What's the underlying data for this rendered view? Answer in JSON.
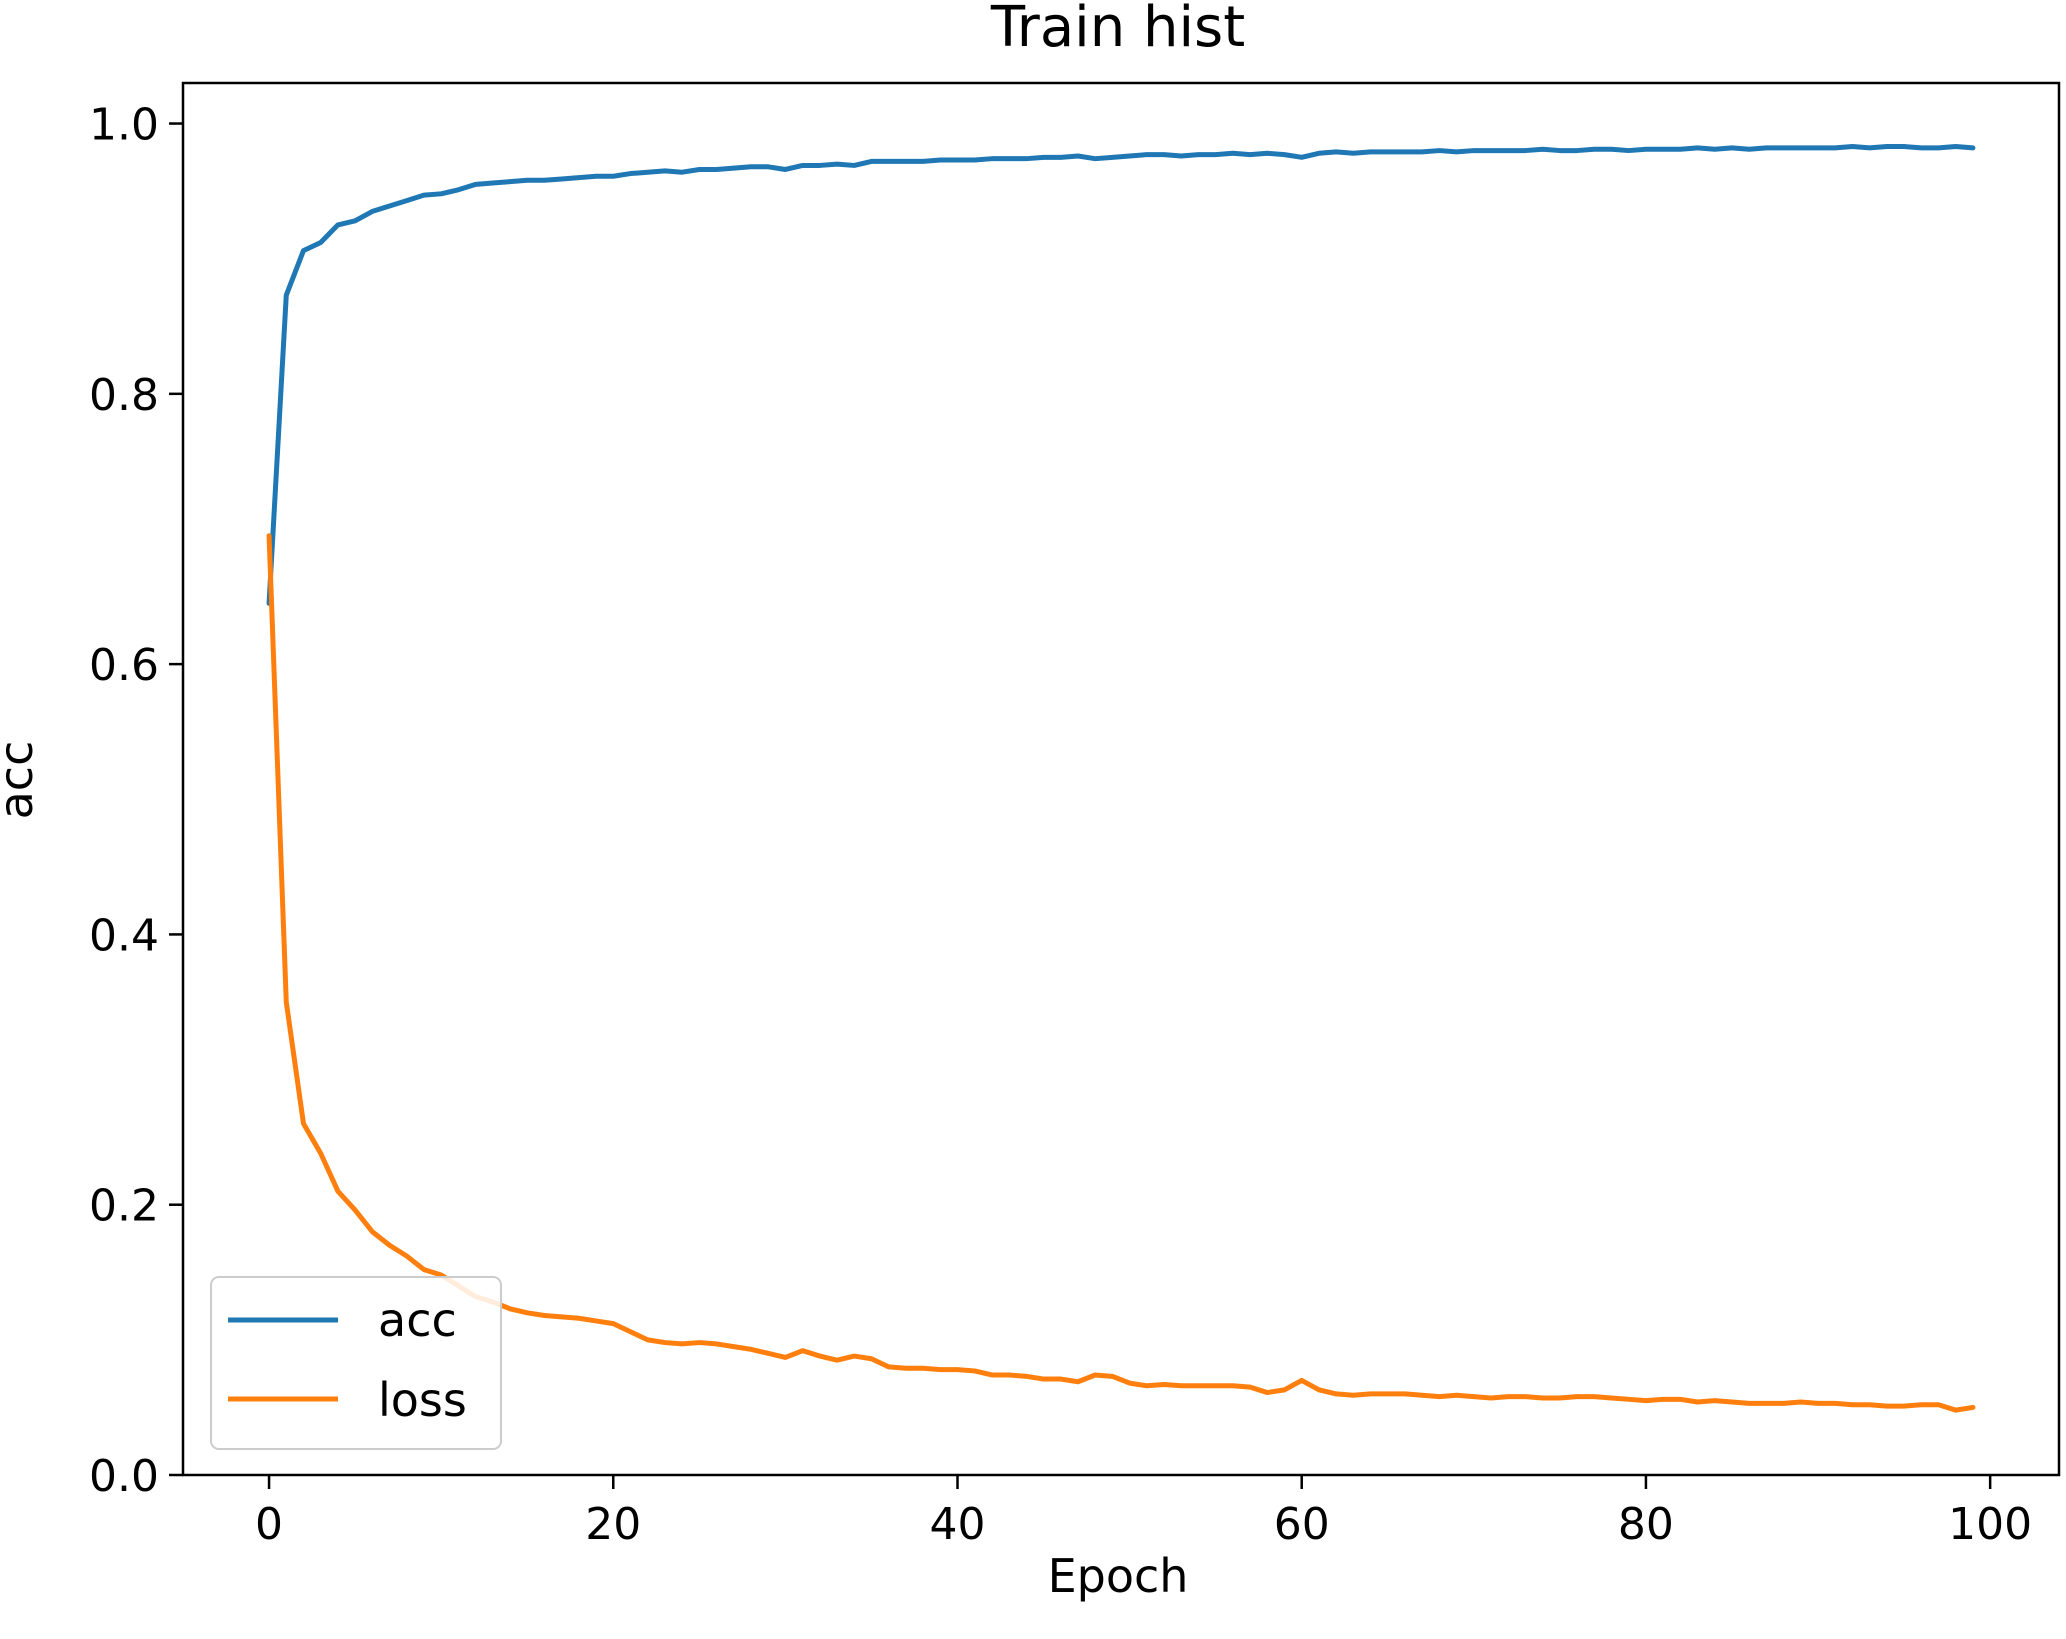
{
  "chart_data": {
    "type": "line",
    "title": "Train hist",
    "xlabel": "Epoch",
    "ylabel": "acc",
    "xlim": [
      -5,
      104
    ],
    "ylim": [
      0.0,
      1.03
    ],
    "xticks": [
      0,
      20,
      40,
      60,
      80,
      100
    ],
    "xtick_labels": [
      "0",
      "20",
      "40",
      "60",
      "80",
      "100"
    ],
    "yticks": [
      0.0,
      0.2,
      0.4,
      0.6,
      0.8,
      1.0
    ],
    "ytick_labels": [
      "0.0",
      "0.2",
      "0.4",
      "0.6",
      "0.8",
      "1.0"
    ],
    "grid": false,
    "legend_position": "lower-left",
    "x": [
      0,
      1,
      2,
      3,
      4,
      5,
      6,
      7,
      8,
      9,
      10,
      11,
      12,
      13,
      14,
      15,
      16,
      17,
      18,
      19,
      20,
      21,
      22,
      23,
      24,
      25,
      26,
      27,
      28,
      29,
      30,
      31,
      32,
      33,
      34,
      35,
      36,
      37,
      38,
      39,
      40,
      41,
      42,
      43,
      44,
      45,
      46,
      47,
      48,
      49,
      50,
      51,
      52,
      53,
      54,
      55,
      56,
      57,
      58,
      59,
      60,
      61,
      62,
      63,
      64,
      65,
      66,
      67,
      68,
      69,
      70,
      71,
      72,
      73,
      74,
      75,
      76,
      77,
      78,
      79,
      80,
      81,
      82,
      83,
      84,
      85,
      86,
      87,
      88,
      89,
      90,
      91,
      92,
      93,
      94,
      95,
      96,
      97,
      98,
      99
    ],
    "series": [
      {
        "name": "acc",
        "color": "#1f77b4",
        "values": [
          0.645,
          0.873,
          0.906,
          0.912,
          0.925,
          0.928,
          0.935,
          0.939,
          0.943,
          0.947,
          0.948,
          0.951,
          0.955,
          0.956,
          0.957,
          0.958,
          0.958,
          0.959,
          0.96,
          0.961,
          0.961,
          0.963,
          0.964,
          0.965,
          0.964,
          0.966,
          0.966,
          0.967,
          0.968,
          0.968,
          0.966,
          0.969,
          0.969,
          0.97,
          0.969,
          0.972,
          0.972,
          0.972,
          0.972,
          0.973,
          0.973,
          0.973,
          0.974,
          0.974,
          0.974,
          0.975,
          0.975,
          0.976,
          0.974,
          0.975,
          0.976,
          0.977,
          0.977,
          0.976,
          0.977,
          0.977,
          0.978,
          0.977,
          0.978,
          0.977,
          0.975,
          0.978,
          0.979,
          0.978,
          0.979,
          0.979,
          0.979,
          0.979,
          0.98,
          0.979,
          0.98,
          0.98,
          0.98,
          0.98,
          0.981,
          0.98,
          0.98,
          0.981,
          0.981,
          0.98,
          0.981,
          0.981,
          0.981,
          0.982,
          0.981,
          0.982,
          0.981,
          0.982,
          0.982,
          0.982,
          0.982,
          0.982,
          0.983,
          0.982,
          0.983,
          0.983,
          0.982,
          0.982,
          0.983,
          0.982
        ]
      },
      {
        "name": "loss",
        "color": "#ff7f0e",
        "values": [
          0.695,
          0.35,
          0.26,
          0.238,
          0.21,
          0.196,
          0.18,
          0.17,
          0.162,
          0.152,
          0.148,
          0.14,
          0.132,
          0.128,
          0.123,
          0.12,
          0.118,
          0.117,
          0.116,
          0.114,
          0.112,
          0.106,
          0.1,
          0.098,
          0.097,
          0.098,
          0.097,
          0.095,
          0.093,
          0.09,
          0.087,
          0.092,
          0.088,
          0.085,
          0.088,
          0.086,
          0.08,
          0.079,
          0.079,
          0.078,
          0.078,
          0.077,
          0.074,
          0.074,
          0.073,
          0.071,
          0.071,
          0.069,
          0.074,
          0.073,
          0.068,
          0.066,
          0.067,
          0.066,
          0.066,
          0.066,
          0.066,
          0.065,
          0.061,
          0.063,
          0.07,
          0.063,
          0.06,
          0.059,
          0.06,
          0.06,
          0.06,
          0.059,
          0.058,
          0.059,
          0.058,
          0.057,
          0.058,
          0.058,
          0.057,
          0.057,
          0.058,
          0.058,
          0.057,
          0.056,
          0.055,
          0.056,
          0.056,
          0.054,
          0.055,
          0.054,
          0.053,
          0.053,
          0.053,
          0.054,
          0.053,
          0.053,
          0.052,
          0.052,
          0.051,
          0.051,
          0.052,
          0.052,
          0.048,
          0.05
        ]
      }
    ]
  }
}
